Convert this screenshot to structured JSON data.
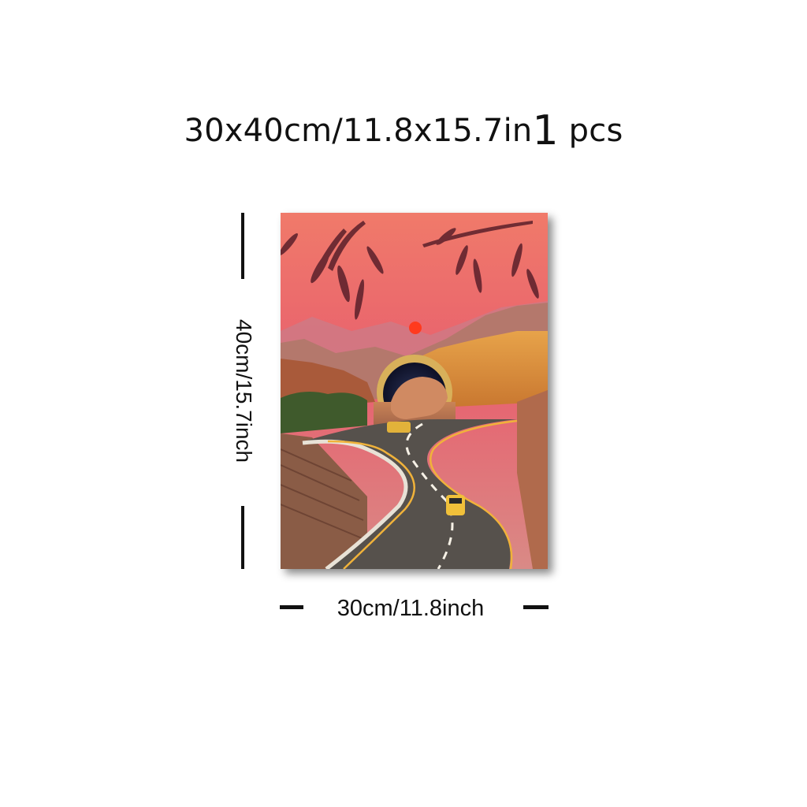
{
  "header": {
    "size_text": "30x40cm/11.8x15.7in",
    "quantity_number": "1",
    "quantity_unit": "pcs"
  },
  "dimensions": {
    "height_label": "40cm/15.7inch",
    "width_label": "30cm/11.8inch"
  },
  "artwork": {
    "sky_color": "#e8606e",
    "sun_color": "#ff3a1e",
    "road_color": "#56514c",
    "line_color": "#f0b23a"
  }
}
